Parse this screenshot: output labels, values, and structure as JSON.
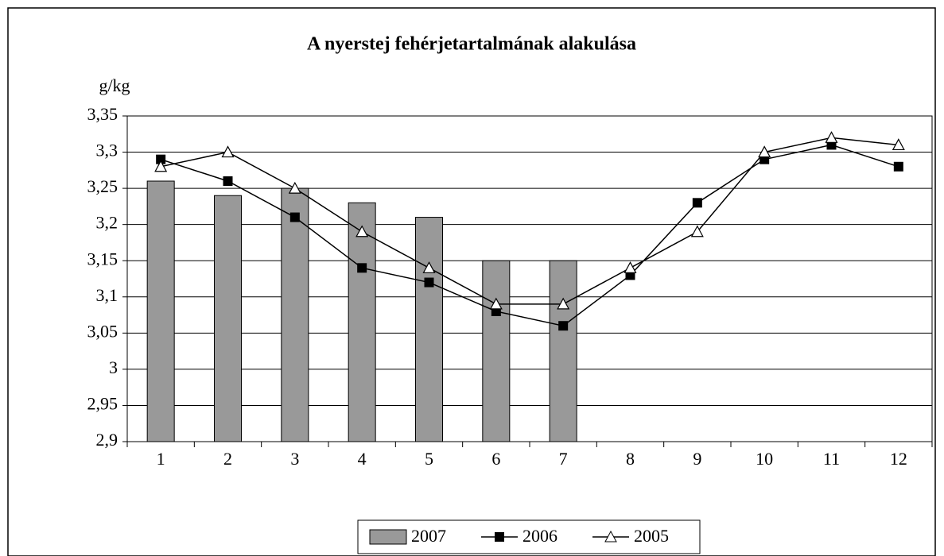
{
  "chart_data": {
    "type": "bar",
    "title": "A nyerstej fehérjetartalmának alakulása",
    "y_label": "g/kg",
    "categories": [
      "1",
      "2",
      "3",
      "4",
      "5",
      "6",
      "7",
      "8",
      "9",
      "10",
      "11",
      "12"
    ],
    "series": [
      {
        "name": "2007",
        "type": "bar",
        "color": "#999999",
        "values": [
          3.26,
          3.24,
          3.25,
          3.23,
          3.21,
          3.15,
          3.15,
          null,
          null,
          null,
          null,
          null
        ]
      },
      {
        "name": "2006",
        "type": "line",
        "marker": "square",
        "color": "#000000",
        "values": [
          3.29,
          3.26,
          3.21,
          3.14,
          3.12,
          3.08,
          3.06,
          3.13,
          3.23,
          3.29,
          3.31,
          3.28
        ]
      },
      {
        "name": "2005",
        "type": "line",
        "marker": "triangle",
        "color": "#000000",
        "values": [
          3.28,
          3.3,
          3.25,
          3.19,
          3.14,
          3.09,
          3.09,
          3.14,
          3.19,
          3.3,
          3.32,
          3.31
        ]
      }
    ],
    "ylim": [
      2.9,
      3.35
    ],
    "yticks": [
      {
        "value": 2.9,
        "label": "2,9"
      },
      {
        "value": 2.95,
        "label": "2,95"
      },
      3,
      {
        "value": 3.05,
        "label": "3,05"
      },
      {
        "value": 3.1,
        "label": "3,1"
      },
      {
        "value": 3.15,
        "label": "3,15"
      },
      {
        "value": 3.2,
        "label": "3,2"
      },
      {
        "value": 3.25,
        "label": "3,25"
      },
      {
        "value": 3.3,
        "label": "3,3"
      },
      {
        "value": 3.35,
        "label": "3,35"
      }
    ],
    "grid": true,
    "legend": "bottom"
  }
}
